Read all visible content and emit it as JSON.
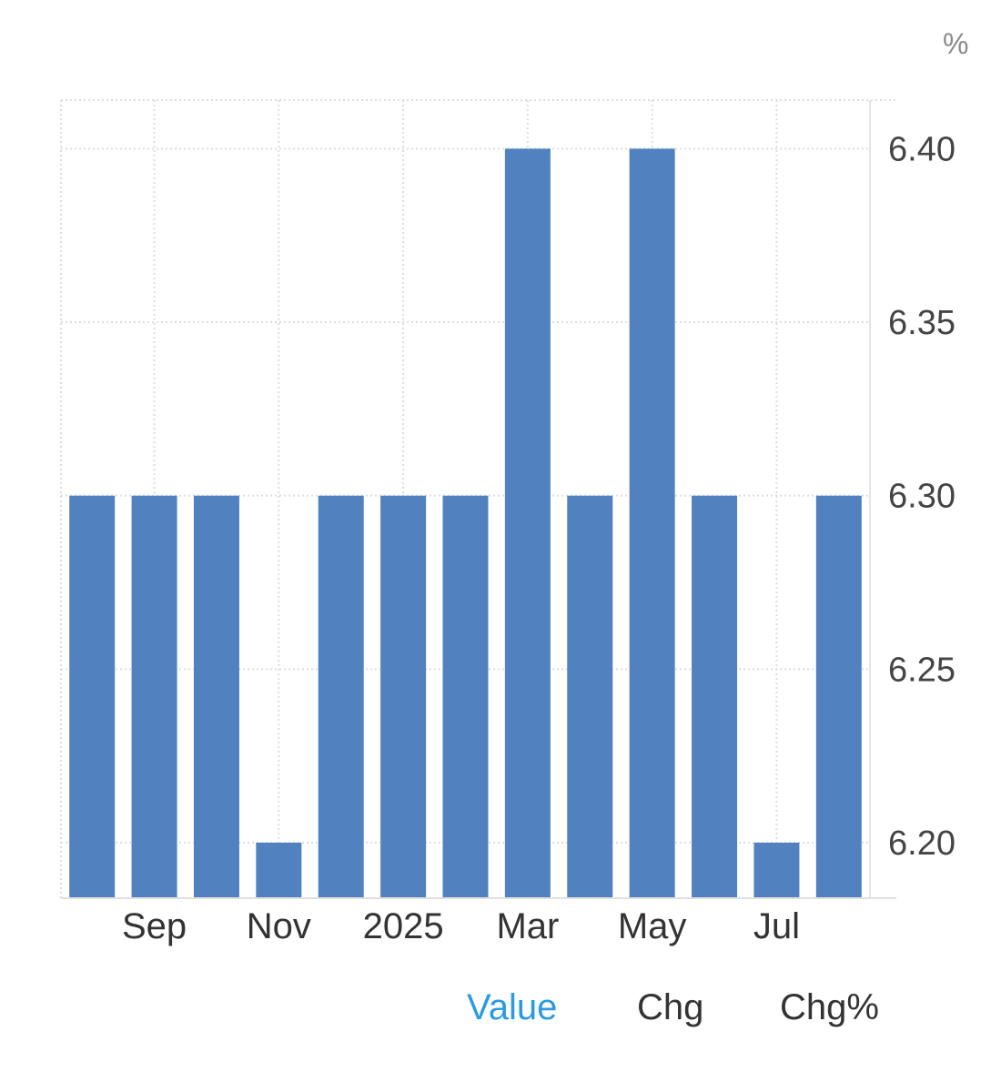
{
  "chart_data": {
    "type": "bar",
    "unit": "%",
    "x": [
      "Aug 2024",
      "Sep 2024",
      "Oct 2024",
      "Nov 2024",
      "Dec 2024",
      "Jan 2025",
      "Feb 2025",
      "Mar 2025",
      "Apr 2025",
      "May 2025",
      "Jun 2025",
      "Jul 2025",
      "Aug 2025"
    ],
    "values": [
      6.3,
      6.3,
      6.3,
      6.2,
      6.3,
      6.3,
      6.3,
      6.4,
      6.3,
      6.4,
      6.3,
      6.2,
      6.3
    ],
    "x_tick_labels": [
      {
        "index": 1,
        "label": "Sep"
      },
      {
        "index": 3,
        "label": "Nov"
      },
      {
        "index": 5,
        "label": "2025"
      },
      {
        "index": 7,
        "label": "Mar"
      },
      {
        "index": 9,
        "label": "May"
      },
      {
        "index": 11,
        "label": "Jul"
      }
    ],
    "y_ticks": [
      "6.20",
      "6.25",
      "6.30",
      "6.35",
      "6.40"
    ],
    "ylim": [
      6.184,
      6.414
    ],
    "y_axis_side": "right",
    "grid": true,
    "bar_color": "#5182bf"
  },
  "tabs": {
    "value": "Value",
    "chg": "Chg",
    "chg_pct": "Chg%"
  }
}
